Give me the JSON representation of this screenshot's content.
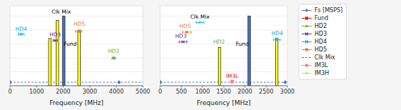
{
  "chart_data": [
    {
      "type": "bar",
      "x_label": "Frequency [MHz]",
      "xlim": [
        0,
        5000
      ],
      "ylim": [
        0,
        1.15
      ],
      "xticks": [
        0,
        1000,
        2000,
        3000,
        4000,
        5000
      ],
      "yticks": [
        0,
        0.2,
        0.4,
        0.6,
        0.8,
        1.0
      ],
      "grid": true,
      "tick_labels": "x",
      "bars": {
        "x": [
          1500,
          1780,
          2020,
          2600
        ],
        "values": [
          0.68,
          0.94,
          1.0,
          0.8
        ],
        "colors": [
          "yellow",
          "yellow",
          "#4472c4",
          "yellow"
        ]
      },
      "reference_line": {
        "y": 0.05,
        "color": "#4472c4",
        "line_style": "dashed"
      },
      "series": [
        {
          "type": "errorbar",
          "color": "#00b0f0",
          "marker": "x",
          "x": [
            420
          ],
          "values": [
            0.74
          ],
          "x_error": [
            110
          ]
        },
        {
          "type": "errorbar",
          "color": "#7030a0",
          "marker": "x",
          "x": [
            1700
          ],
          "values": [
            0.65
          ],
          "x_error": [
            80
          ]
        },
        {
          "type": "errorbar",
          "color": "#ed7d31",
          "marker": "square",
          "x": [
            2580
          ],
          "values": [
            0.78
          ],
          "x_error": [
            120
          ]
        },
        {
          "type": "scatter",
          "color": "#70ad47",
          "marker": "triangle",
          "x": [
            3870,
            3930
          ],
          "values": [
            0.4,
            0.4
          ]
        },
        {
          "type": "scatter",
          "color": "#4472c4",
          "marker": "diamond",
          "x": [
            10,
            4100
          ],
          "values": [
            0.05,
            0.05
          ]
        }
      ],
      "annotations": [
        {
          "text": "HD4",
          "x": 420,
          "y": 0.78,
          "color": "#00b0f0",
          "align": "center"
        },
        {
          "text": "HD3",
          "x": 1700,
          "y": 0.7,
          "color": "#7030a0",
          "align": "center"
        },
        {
          "text": "Clk Mix",
          "x": 1930,
          "y": 1.03,
          "color": "black",
          "align": "center"
        },
        {
          "text": "Fund",
          "x": 2020,
          "y": 0.56,
          "color": "black",
          "align": "left"
        },
        {
          "text": "HD5",
          "x": 2610,
          "y": 0.85,
          "color": "#ed7d31",
          "align": "center"
        },
        {
          "text": "HD2",
          "x": 3900,
          "y": 0.46,
          "color": "#70ad47",
          "align": "center"
        }
      ]
    },
    {
      "type": "bar",
      "x_label": "Frequency [MHz]",
      "xlim": [
        0,
        3000
      ],
      "ylim": [
        0,
        1.15
      ],
      "xticks": [
        0,
        500,
        1000,
        1500,
        2000,
        2500,
        3000
      ],
      "yticks": [
        0,
        0.2,
        0.4,
        0.6,
        0.8,
        1.0
      ],
      "grid": true,
      "tick_labels": "x",
      "bars": {
        "x": [
          1400,
          2100,
          2750
        ],
        "values": [
          0.55,
          1.0,
          0.68
        ],
        "colors": [
          "yellow",
          "#4472c4",
          "yellow"
        ]
      },
      "reference_line": {
        "y": 0.05,
        "color": "#4472c4",
        "line_style": "dashed"
      },
      "series": [
        {
          "type": "errorbar",
          "color": "#00b0f0",
          "marker": "plus",
          "x": [
            940
          ],
          "values": [
            0.91
          ],
          "x_error": [
            90
          ]
        },
        {
          "type": "errorbar",
          "color": "#ed7d31",
          "marker": "square",
          "x": [
            630
          ],
          "values": [
            0.77
          ],
          "x_error": [
            100
          ]
        },
        {
          "type": "errorbar",
          "color": "#7030a0",
          "marker": "x",
          "x": [
            540
          ],
          "values": [
            0.63
          ],
          "x_error": [
            90
          ]
        },
        {
          "type": "errorbar",
          "color": "#00b0f0",
          "marker": "x",
          "x": [
            2750
          ],
          "values": [
            0.66
          ],
          "x_error": [
            80
          ]
        },
        {
          "type": "scatter",
          "color": "#4472c4",
          "marker": "diamond",
          "x": [
            10,
            2950
          ],
          "values": [
            0.05,
            0.05
          ]
        },
        {
          "type": "scatter",
          "color": "#ff7f7f",
          "marker": "square",
          "x": [
            1700
          ],
          "values": [
            0.06
          ]
        }
      ],
      "annotations": [
        {
          "text": "Clk Mix",
          "x": 940,
          "y": 0.96,
          "color": "black",
          "align": "center"
        },
        {
          "text": "HD5",
          "x": 590,
          "y": 0.82,
          "color": "#ed7d31",
          "align": "center"
        },
        {
          "text": "HD3",
          "x": 490,
          "y": 0.68,
          "color": "#7030a0",
          "align": "center"
        },
        {
          "text": "HD2",
          "x": 1390,
          "y": 0.6,
          "color": "#70ad47",
          "align": "center"
        },
        {
          "text": "Fund",
          "x": 2090,
          "y": 0.56,
          "color": "black",
          "align": "right"
        },
        {
          "text": "HD4",
          "x": 2760,
          "y": 0.72,
          "color": "#00b0f0",
          "align": "center"
        },
        {
          "text": "IM3L",
          "x": 1700,
          "y": 0.1,
          "color": "#ff0000",
          "align": "center"
        }
      ],
      "legend": "right",
      "legend_items": [
        {
          "name": "Fs [MSPS]",
          "color": "#4472c4",
          "marker": "diamond",
          "line_style": "solid"
        },
        {
          "name": "Fund",
          "color": "#ff0000",
          "marker": "square",
          "line_style": "solid"
        },
        {
          "name": "HD2",
          "color": "#70ad47",
          "marker": "triangle",
          "line_style": "solid"
        },
        {
          "name": "HD3",
          "color": "#7030a0",
          "marker": "x",
          "line_style": "solid"
        },
        {
          "name": "HD4",
          "color": "#00b0f0",
          "marker": "x",
          "line_style": "solid"
        },
        {
          "name": "HD5",
          "color": "#ed7d31",
          "marker": "square",
          "line_style": "solid"
        },
        {
          "name": "Clk Mix",
          "color": "#4472c4",
          "marker": "none",
          "line_style": "dashed"
        },
        {
          "name": "IM3L",
          "color": "#ff7f7f",
          "marker": "square",
          "line_style": "solid"
        },
        {
          "name": "IM3H",
          "color": "#c0e070",
          "marker": "triangle",
          "line_style": "solid"
        }
      ]
    }
  ]
}
